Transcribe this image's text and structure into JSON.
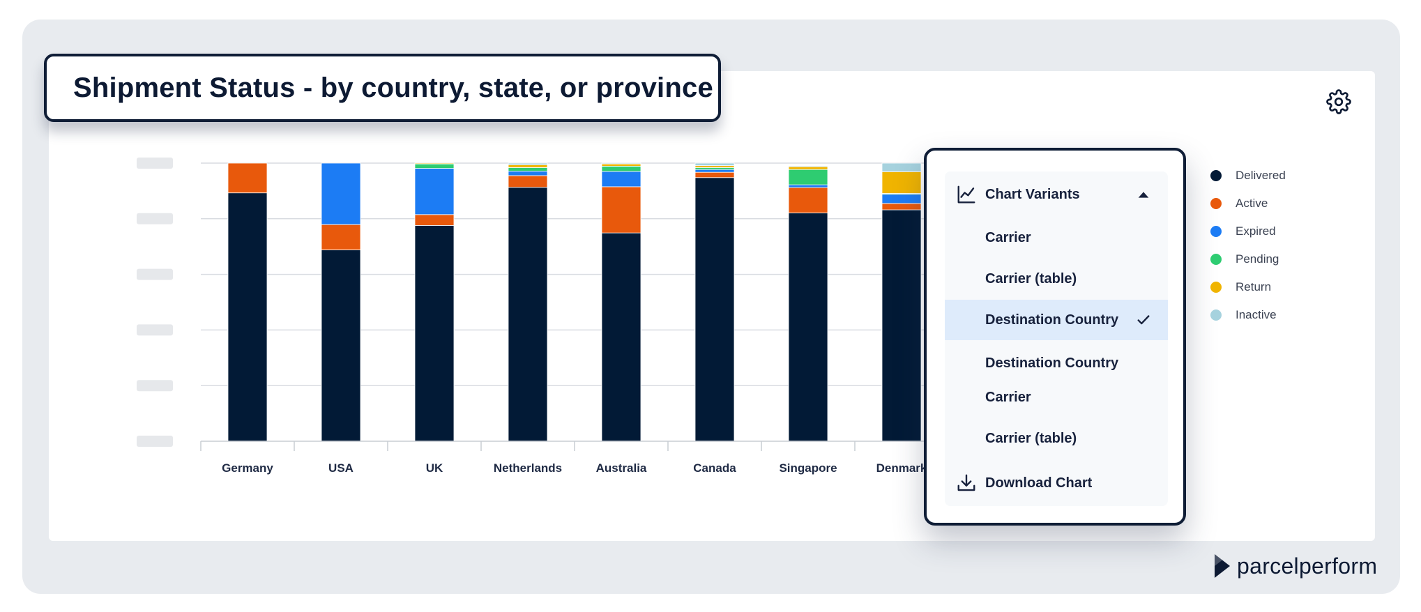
{
  "title": "Shipment Status - by country, state, or province",
  "brand": {
    "name": "parcelperform"
  },
  "icons": {
    "settings": "gear-icon",
    "chart_variants": "line-chart-icon",
    "collapse": "caret-up-icon",
    "selected": "check-icon",
    "download": "download-icon"
  },
  "menu": {
    "header": "Chart Variants",
    "items": [
      {
        "label": "Carrier",
        "selected": false
      },
      {
        "label": "Carrier (table)",
        "selected": false
      },
      {
        "label": "Destination Country",
        "selected": true
      },
      {
        "label": "Destination Country",
        "selected": false
      },
      {
        "label": "Carrier",
        "selected": false
      },
      {
        "label": "Carrier (table)",
        "selected": false
      }
    ],
    "download": "Download Chart"
  },
  "legend": [
    {
      "label": "Delivered",
      "color": "#021a36"
    },
    {
      "label": "Active",
      "color": "#e8590c"
    },
    {
      "label": "Expired",
      "color": "#1c7cf4"
    },
    {
      "label": "Pending",
      "color": "#2ecc71"
    },
    {
      "label": "Return",
      "color": "#f0b400"
    },
    {
      "label": "Inactive",
      "color": "#a6d2de"
    }
  ],
  "chart_data": {
    "type": "bar",
    "stacked": true,
    "categories": [
      "Germany",
      "USA",
      "UK",
      "Netherlands",
      "Australia",
      "Canada",
      "Singapore",
      "Denmark"
    ],
    "ylim": [
      0,
      100
    ],
    "grid": true,
    "legend_position": "right",
    "y_tick_labels_visible": false,
    "series": [
      {
        "name": "Delivered",
        "color": "#021a36",
        "values": [
          89.3,
          68.8,
          77.6,
          91.3,
          74.9,
          94.8,
          82.1,
          83.2
        ]
      },
      {
        "name": "Active",
        "color": "#e8590c",
        "values": [
          10.7,
          9.1,
          3.9,
          4.2,
          16.6,
          1.9,
          9.1,
          2.3
        ]
      },
      {
        "name": "Expired",
        "color": "#1c7cf4",
        "values": [
          0,
          22.1,
          16.6,
          1.6,
          5.5,
          1.0,
          1.0,
          3.3
        ]
      },
      {
        "name": "Pending",
        "color": "#2ecc71",
        "values": [
          0,
          0,
          1.6,
          1.3,
          1.9,
          0.7,
          5.5,
          0.3
        ]
      },
      {
        "name": "Return",
        "color": "#f0b400",
        "values": [
          0,
          0,
          0.3,
          1.0,
          0.8,
          0.7,
          1.0,
          7.8
        ]
      },
      {
        "name": "Inactive",
        "color": "#a6d2de",
        "values": [
          0,
          0,
          0,
          0.6,
          0.3,
          0.9,
          0.3,
          3.1
        ]
      }
    ]
  }
}
